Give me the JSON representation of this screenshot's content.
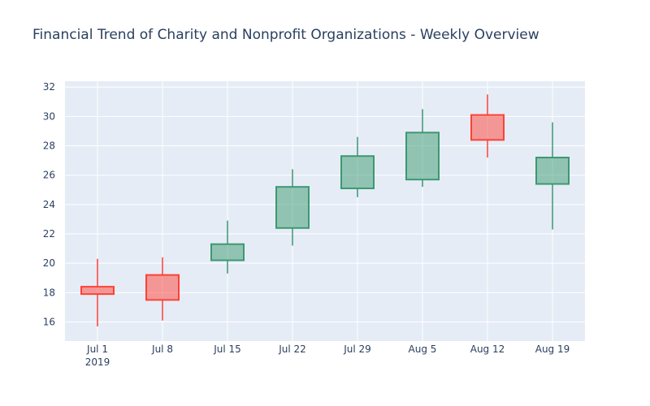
{
  "chart_data": {
    "type": "candlestick",
    "title": "Financial Trend of Charity and Nonprofit Organizations - Weekly Overview",
    "xlabel": "",
    "ylabel": "",
    "x_ticks": [
      "Jul 1",
      "Jul 8",
      "Jul 15",
      "Jul 22",
      "Jul 29",
      "Aug 5",
      "Aug 12",
      "Aug 19"
    ],
    "x_year_label": "2019",
    "y_ticks": [
      16,
      18,
      20,
      22,
      24,
      26,
      28,
      30,
      32
    ],
    "ylim": [
      14.7,
      32.4
    ],
    "grid": true,
    "colors": {
      "increasing": "#3d9970",
      "decreasing": "#ff4136",
      "plot_bg": "#e5ecf6",
      "grid": "#ffffff",
      "text": "#2a3f5f"
    },
    "candles": [
      {
        "date": "2019-07-01",
        "open": 18.4,
        "high": 20.3,
        "low": 15.7,
        "close": 17.9
      },
      {
        "date": "2019-07-08",
        "open": 19.2,
        "high": 20.4,
        "low": 16.1,
        "close": 17.5
      },
      {
        "date": "2019-07-15",
        "open": 20.2,
        "high": 22.9,
        "low": 19.3,
        "close": 21.3
      },
      {
        "date": "2019-07-22",
        "open": 22.4,
        "high": 26.4,
        "low": 21.2,
        "close": 25.2
      },
      {
        "date": "2019-07-29",
        "open": 25.1,
        "high": 28.6,
        "low": 24.5,
        "close": 27.3
      },
      {
        "date": "2019-08-05",
        "open": 25.7,
        "high": 30.5,
        "low": 25.2,
        "close": 28.9
      },
      {
        "date": "2019-08-12",
        "open": 30.1,
        "high": 31.5,
        "low": 27.2,
        "close": 28.4
      },
      {
        "date": "2019-08-19",
        "open": 25.4,
        "high": 29.6,
        "low": 22.3,
        "close": 27.2
      }
    ]
  }
}
